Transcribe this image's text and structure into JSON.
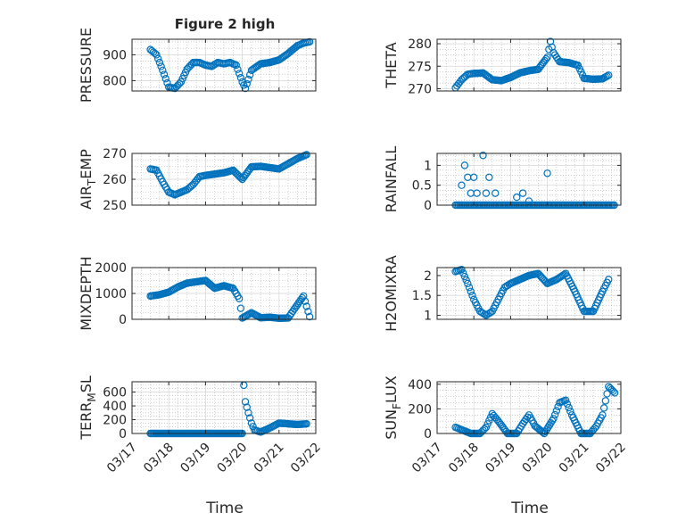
{
  "title": "Figure 2 high",
  "colors": {
    "marker": "#0072BD",
    "axis": "#262626",
    "grid": "#b0b0b0",
    "background": "#ffffff"
  },
  "x_axis": {
    "label": "Time",
    "tick_labels": [
      "03/17",
      "03/18",
      "03/19",
      "03/20",
      "03/21",
      "03/22"
    ],
    "range_days": [
      "03/17",
      "03/22"
    ]
  },
  "chart_data": [
    {
      "type": "scatter",
      "ylabel": "PRESSURE",
      "ylim": [
        760,
        960
      ],
      "yticks": [
        800,
        900
      ],
      "ytick_labels": [
        "800",
        "900"
      ],
      "x": [
        "03/17 12:00",
        "03/17 16:00",
        "03/17 20:00",
        "03/18 00:00",
        "03/18 04:00",
        "03/18 08:00",
        "03/18 12:00",
        "03/18 16:00",
        "03/18 20:00",
        "03/19 00:00",
        "03/19 04:00",
        "03/19 08:00",
        "03/19 12:00",
        "03/19 16:00",
        "03/19 20:00",
        "03/20 00:00",
        "03/20 02:00",
        "03/20 06:00",
        "03/20 12:00",
        "03/20 18:00",
        "03/21 00:00",
        "03/21 06:00",
        "03/21 12:00",
        "03/21 16:00",
        "03/21 20:00"
      ],
      "y": [
        920,
        900,
        840,
        775,
        770,
        795,
        845,
        870,
        870,
        860,
        855,
        870,
        865,
        870,
        860,
        795,
        770,
        840,
        865,
        870,
        880,
        905,
        935,
        945,
        950
      ]
    },
    {
      "type": "scatter",
      "ylabel": "THETA",
      "ylim": [
        269.5,
        281
      ],
      "yticks": [
        270,
        275,
        280
      ],
      "ytick_labels": [
        "270",
        "275",
        "280"
      ],
      "x": [
        "03/17 12:00",
        "03/17 16:00",
        "03/17 20:00",
        "03/18 00:00",
        "03/18 06:00",
        "03/18 12:00",
        "03/18 18:00",
        "03/19 00:00",
        "03/19 06:00",
        "03/19 12:00",
        "03/19 18:00",
        "03/20 00:00",
        "03/20 02:00",
        "03/20 04:00",
        "03/20 08:00",
        "03/20 14:00",
        "03/20 20:00",
        "03/21 00:00",
        "03/21 06:00",
        "03/21 12:00",
        "03/21 16:00"
      ],
      "y": [
        270.2,
        272,
        273.2,
        273.4,
        273.5,
        272,
        271.8,
        272.5,
        273.5,
        274,
        274.3,
        277,
        280.5,
        278,
        276,
        275.8,
        275.2,
        272.3,
        272.1,
        272.2,
        273
      ]
    },
    {
      "type": "scatter",
      "ylabel": "AIR_TEMP",
      "ylim": [
        250,
        270
      ],
      "yticks": [
        250,
        260,
        270
      ],
      "ytick_labels": [
        "250",
        "260",
        "270"
      ],
      "x": [
        "03/17 12:00",
        "03/17 16:00",
        "03/17 20:00",
        "03/18 00:00",
        "03/18 04:00",
        "03/18 08:00",
        "03/18 12:00",
        "03/18 16:00",
        "03/18 20:00",
        "03/19 00:00",
        "03/19 06:00",
        "03/19 12:00",
        "03/19 18:00",
        "03/20 00:00",
        "03/20 06:00",
        "03/20 12:00",
        "03/20 18:00",
        "03/21 00:00",
        "03/21 06:00",
        "03/21 12:00",
        "03/21 18:00"
      ],
      "y": [
        264,
        263.5,
        259,
        255,
        254,
        255,
        256,
        258,
        261,
        261.5,
        262,
        262.5,
        263.5,
        260,
        264.8,
        265,
        264.5,
        264,
        266,
        268,
        269.5
      ]
    },
    {
      "type": "scatter",
      "ylabel": "RAINFALL",
      "ylim": [
        0,
        1.3
      ],
      "yticks": [
        0,
        0.5,
        1
      ],
      "ytick_labels": [
        "0",
        "0.5",
        "1"
      ],
      "x": [
        "03/17 12:00",
        "03/17 16:00",
        "03/17 18:00",
        "03/17 20:00",
        "03/17 22:00",
        "03/18 00:00",
        "03/18 02:00",
        "03/18 04:00",
        "03/18 06:00",
        "03/18 08:00",
        "03/18 10:00",
        "03/18 14:00",
        "03/18 20:00",
        "03/19 04:00",
        "03/19 08:00",
        "03/19 12:00",
        "03/19 20:00",
        "03/20 00:00",
        "03/20 08:00",
        "03/20 16:00",
        "03/21 00:00",
        "03/21 08:00",
        "03/21 16:00",
        "03/21 20:00"
      ],
      "y": [
        0,
        0.5,
        1,
        0.7,
        0.3,
        0.7,
        0.3,
        0,
        1.25,
        0.3,
        0.7,
        0.3,
        0,
        0.2,
        0.3,
        0.1,
        0,
        0.8,
        0,
        0,
        0,
        0,
        0,
        0
      ]
    },
    {
      "type": "scatter",
      "ylabel": "MIXDEPTH",
      "ylim": [
        0,
        2000
      ],
      "yticks": [
        0,
        1000,
        2000
      ],
      "ytick_labels": [
        "0",
        "1000",
        "2000"
      ],
      "x": [
        "03/17 12:00",
        "03/17 18:00",
        "03/18 00:00",
        "03/18 06:00",
        "03/18 12:00",
        "03/18 18:00",
        "03/19 00:00",
        "03/19 06:00",
        "03/19 12:00",
        "03/19 18:00",
        "03/19 22:00",
        "03/20 00:00",
        "03/20 06:00",
        "03/20 12:00",
        "03/20 18:00",
        "03/21 00:00",
        "03/21 06:00",
        "03/21 10:00",
        "03/21 16:00",
        "03/21 20:00"
      ],
      "y": [
        900,
        950,
        1050,
        1250,
        1400,
        1450,
        1500,
        1200,
        1300,
        1200,
        800,
        50,
        250,
        60,
        80,
        40,
        50,
        400,
        900,
        100
      ]
    },
    {
      "type": "scatter",
      "ylabel": "H2OMIXRA",
      "ylim": [
        0.9,
        2.2
      ],
      "yticks": [
        1,
        1.5,
        2
      ],
      "ytick_labels": [
        "1",
        "1.5",
        "2"
      ],
      "x": [
        "03/17 12:00",
        "03/17 16:00",
        "03/17 20:00",
        "03/18 00:00",
        "03/18 04:00",
        "03/18 08:00",
        "03/18 12:00",
        "03/18 16:00",
        "03/18 20:00",
        "03/19 00:00",
        "03/19 06:00",
        "03/19 12:00",
        "03/19 18:00",
        "03/20 00:00",
        "03/20 06:00",
        "03/20 12:00",
        "03/20 18:00",
        "03/21 00:00",
        "03/21 06:00",
        "03/21 12:00",
        "03/21 16:00"
      ],
      "y": [
        2.1,
        2.15,
        1.8,
        1.4,
        1.1,
        1.0,
        1.1,
        1.4,
        1.7,
        1.8,
        1.9,
        2.0,
        2.05,
        1.8,
        1.9,
        2.05,
        1.6,
        1.1,
        1.1,
        1.6,
        1.9
      ]
    },
    {
      "type": "scatter",
      "ylabel": "TERR_MSL",
      "ylim": [
        0,
        750
      ],
      "yticks": [
        0,
        200,
        400,
        600
      ],
      "ytick_labels": [
        "0",
        "200",
        "400",
        "600"
      ],
      "x": [
        "03/17 12:00",
        "03/18 00:00",
        "03/18 12:00",
        "03/19 00:00",
        "03/19 12:00",
        "03/20 00:00",
        "03/20 01:00",
        "03/20 02:00",
        "03/20 04:00",
        "03/20 06:00",
        "03/20 08:00",
        "03/20 12:00",
        "03/20 18:00",
        "03/21 00:00",
        "03/21 06:00",
        "03/21 12:00",
        "03/21 18:00"
      ],
      "y": [
        0,
        0,
        0,
        0,
        0,
        0,
        700,
        460,
        300,
        150,
        50,
        20,
        80,
        150,
        140,
        130,
        140
      ]
    },
    {
      "type": "scatter",
      "ylabel": "SUN_FLUX",
      "ylim": [
        0,
        420
      ],
      "yticks": [
        0,
        200,
        400
      ],
      "ytick_labels": [
        "0",
        "200",
        "400"
      ],
      "x": [
        "03/17 12:00",
        "03/17 16:00",
        "03/17 22:00",
        "03/18 04:00",
        "03/18 08:00",
        "03/18 12:00",
        "03/18 16:00",
        "03/18 22:00",
        "03/19 04:00",
        "03/19 08:00",
        "03/19 12:00",
        "03/19 16:00",
        "03/19 22:00",
        "03/20 04:00",
        "03/20 08:00",
        "03/20 12:00",
        "03/20 16:00",
        "03/20 22:00",
        "03/21 04:00",
        "03/21 08:00",
        "03/21 12:00",
        "03/21 16:00",
        "03/21 20:00"
      ],
      "y": [
        50,
        30,
        0,
        0,
        50,
        160,
        100,
        0,
        0,
        80,
        150,
        60,
        0,
        120,
        250,
        270,
        150,
        0,
        0,
        60,
        150,
        380,
        330
      ]
    }
  ]
}
